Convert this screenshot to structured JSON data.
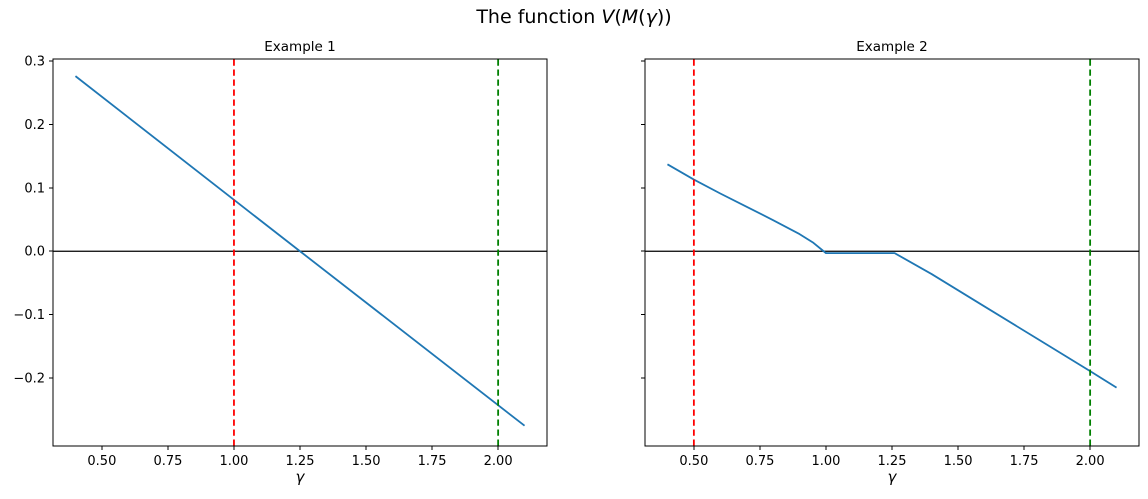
{
  "figure": {
    "title": "The function V(M(γ))",
    "title_parts": [
      {
        "text": "The function ",
        "italic": false
      },
      {
        "text": "V",
        "italic": true
      },
      {
        "text": "(",
        "italic": false
      },
      {
        "text": "M",
        "italic": true
      },
      {
        "text": "(",
        "italic": false
      },
      {
        "text": "γ",
        "italic": true
      },
      {
        "text": "))",
        "italic": false
      }
    ],
    "background": "#ffffff",
    "accent_colors": {
      "series": "#1f77b4",
      "vline_red": "#ff0000",
      "vline_green": "#008000",
      "axis": "#000000"
    }
  },
  "chart_data": [
    {
      "type": "line",
      "title": "Example 1",
      "xlabel": "γ",
      "ylabel": "",
      "grid": false,
      "legend": null,
      "xlim": [
        0.315,
        2.185
      ],
      "ylim": [
        -0.307,
        0.303
      ],
      "xticks": {
        "values": [
          0.5,
          0.75,
          1.0,
          1.25,
          1.5,
          1.75,
          2.0
        ],
        "labels": [
          "0.50",
          "0.75",
          "1.00",
          "1.25",
          "1.50",
          "1.75",
          "2.00"
        ]
      },
      "yticks": {
        "values": [
          0.3,
          0.2,
          0.1,
          0.0,
          -0.1,
          -0.2
        ],
        "labels": [
          "0.3",
          "0.2",
          "0.1",
          "0.0",
          "−0.1",
          "−0.2"
        ]
      },
      "series": [
        {
          "name": "V(M(γ))",
          "color": "#1f77b4",
          "style": "solid",
          "points": [
            [
              0.4,
              0.276
            ],
            [
              1.0,
              0.081
            ],
            [
              1.25,
              0.0
            ],
            [
              2.1,
              -0.275
            ]
          ]
        }
      ],
      "hlines": [
        {
          "y": 0.0,
          "color": "#000000",
          "style": "solid"
        }
      ],
      "vlines": [
        {
          "x": 1.0,
          "color": "#ff0000",
          "style": "dashed"
        },
        {
          "x": 2.0,
          "color": "#008000",
          "style": "dashed"
        }
      ]
    },
    {
      "type": "line",
      "title": "Example 2",
      "xlabel": "γ",
      "ylabel": "",
      "grid": false,
      "legend": null,
      "xlim": [
        0.315,
        2.185
      ],
      "ylim": [
        -0.307,
        0.303
      ],
      "xticks": {
        "values": [
          0.5,
          0.75,
          1.0,
          1.25,
          1.5,
          1.75,
          2.0
        ],
        "labels": [
          "0.50",
          "0.75",
          "1.00",
          "1.25",
          "1.50",
          "1.75",
          "2.00"
        ]
      },
      "yticks": {
        "values": [
          0.3,
          0.2,
          0.1,
          0.0,
          -0.1,
          -0.2
        ],
        "labels": [
          "",
          "",
          "",
          "",
          "",
          ""
        ]
      },
      "series": [
        {
          "name": "V(M(γ))",
          "color": "#1f77b4",
          "style": "solid",
          "points": [
            [
              0.4,
              0.137
            ],
            [
              0.5,
              0.113
            ],
            [
              0.6,
              0.091
            ],
            [
              0.7,
              0.07
            ],
            [
              0.8,
              0.049
            ],
            [
              0.9,
              0.027
            ],
            [
              0.95,
              0.014
            ],
            [
              1.0,
              -0.003
            ],
            [
              1.26,
              -0.003
            ],
            [
              1.4,
              -0.036
            ],
            [
              1.6,
              -0.087
            ],
            [
              1.8,
              -0.138
            ],
            [
              2.0,
              -0.189
            ],
            [
              2.1,
              -0.215
            ]
          ]
        }
      ],
      "hlines": [
        {
          "y": 0.0,
          "color": "#000000",
          "style": "solid"
        }
      ],
      "vlines": [
        {
          "x": 0.5,
          "color": "#ff0000",
          "style": "dashed"
        },
        {
          "x": 2.0,
          "color": "#008000",
          "style": "dashed"
        }
      ]
    }
  ]
}
